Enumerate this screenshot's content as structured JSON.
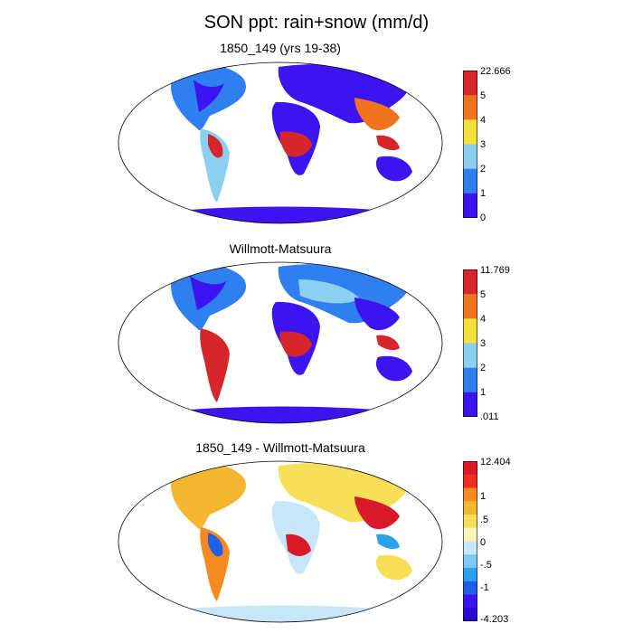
{
  "title": "SON ppt: rain+snow (mm/d)",
  "panels": [
    {
      "title": "1850_149 (yrs 19-38)",
      "colorbar": {
        "labels": [
          "22.666",
          "5",
          "4",
          "3",
          "2",
          "1",
          "0"
        ],
        "colors": [
          "#d7262a",
          "#f0741e",
          "#f5df3a",
          "#8cd0f0",
          "#2f7ff0",
          "#3c14f0"
        ]
      }
    },
    {
      "title": "Willmott-Matsuura",
      "colorbar": {
        "labels": [
          "11.769",
          "5",
          "4",
          "3",
          "2",
          "1",
          ".011"
        ],
        "colors": [
          "#d7262a",
          "#f0741e",
          "#f5df3a",
          "#8cd0f0",
          "#2f7ff0",
          "#3c14f0"
        ]
      }
    },
    {
      "title": "1850_149 - Willmott-Matsuura",
      "colorbar": {
        "labels": [
          "12.404",
          "1",
          ".5",
          "0",
          "-.5",
          "-1",
          "-4.203"
        ],
        "colors": [
          "#d7192a",
          "#f0301e",
          "#f58a1e",
          "#f5b630",
          "#f7df5a",
          "#fcf6b8",
          "#c7e6f8",
          "#7cc8f2",
          "#2ca2ee",
          "#2060e6",
          "#3c14f0",
          "#2a0ad0"
        ]
      }
    }
  ]
}
